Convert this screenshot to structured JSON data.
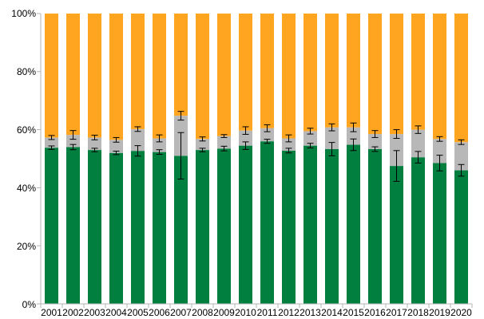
{
  "chart_data": {
    "type": "bar",
    "stacked": true,
    "percent_stacked": true,
    "categories": [
      "2001",
      "2002",
      "2003",
      "2004",
      "2005",
      "2006",
      "2007",
      "2008",
      "2009",
      "2010",
      "2011",
      "2012",
      "2013",
      "2014",
      "2015",
      "2016",
      "2017",
      "2018",
      "2019",
      "2020"
    ],
    "series": [
      {
        "color": "#007f3f",
        "values": [
          53.8,
          54.0,
          53.0,
          52.0,
          52.7,
          52.3,
          51.0,
          53.0,
          53.5,
          54.5,
          56.0,
          52.8,
          54.5,
          53.3,
          54.8,
          53.3,
          47.5,
          50.5,
          48.5,
          46.0
        ],
        "error": [
          0.6,
          0.9,
          0.6,
          0.6,
          1.8,
          0.8,
          8.0,
          0.6,
          0.8,
          1.3,
          0.7,
          0.8,
          0.8,
          2.3,
          2.0,
          0.8,
          5.3,
          2.0,
          2.7,
          2.0
        ]
      },
      {
        "color": "#b8b8b8",
        "values": [
          3.5,
          4.2,
          4.3,
          4.5,
          7.5,
          4.7,
          13.8,
          3.8,
          4.3,
          5.2,
          4.5,
          4.2,
          5.0,
          7.5,
          6.0,
          5.2,
          11.0,
          9.5,
          8.3,
          9.7
        ],
        "error": [
          0.7,
          1.5,
          0.8,
          0.8,
          0.8,
          1.2,
          1.5,
          0.7,
          0.5,
          1.3,
          1.2,
          1.2,
          1.0,
          1.2,
          1.5,
          1.2,
          1.5,
          1.3,
          0.8,
          0.8
        ]
      },
      {
        "color": "#ffa51f",
        "values": [
          42.7,
          41.8,
          42.7,
          43.5,
          39.8,
          43.0,
          35.2,
          43.2,
          42.2,
          40.3,
          39.5,
          43.0,
          40.5,
          39.2,
          39.2,
          41.5,
          41.5,
          40.0,
          43.2,
          44.3
        ]
      }
    ],
    "y_ticks": [
      "0%",
      "20%",
      "40%",
      "60%",
      "80%",
      "100%"
    ],
    "ylim": [
      0,
      100
    ],
    "grid": false,
    "legend": "none"
  }
}
